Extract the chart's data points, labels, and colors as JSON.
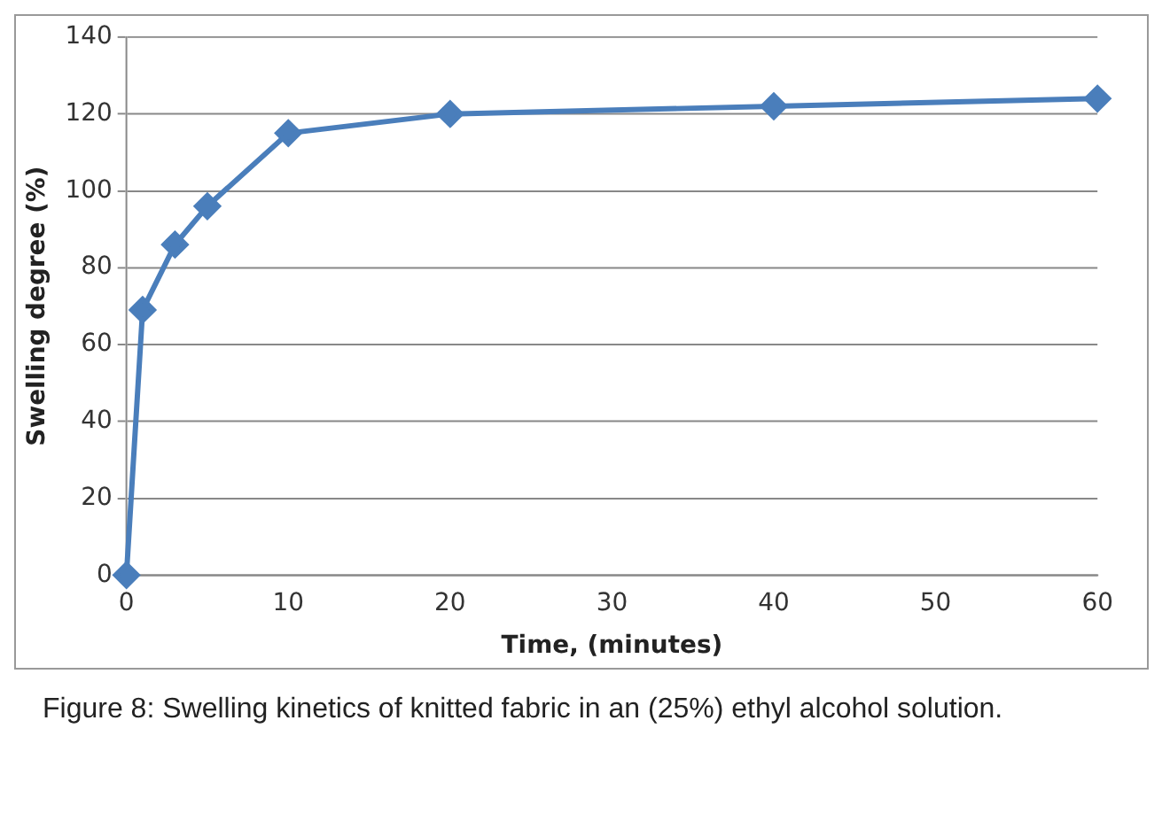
{
  "chart_data": {
    "type": "line",
    "xlabel": "Time, (minutes)",
    "ylabel": "Swelling degree (%)",
    "x": [
      0,
      1,
      3,
      5,
      10,
      20,
      40,
      60
    ],
    "series": [
      {
        "color": "#4a7ebb",
        "values": [
          0,
          69,
          86,
          96,
          115,
          120,
          122,
          124
        ]
      }
    ],
    "xlim": [
      0,
      60
    ],
    "xticks": [
      0,
      10,
      20,
      30,
      40,
      50,
      60
    ],
    "ylim": [
      0,
      140
    ],
    "yticks": [
      0,
      20,
      40,
      60,
      80,
      100,
      120,
      140
    ],
    "grid": "y",
    "marker": "diamond",
    "line_style": "solid",
    "annotations": [
      "Figure 8: Swelling kinetics of knitted fabric in an (25%) ethyl alcohol solution."
    ]
  }
}
